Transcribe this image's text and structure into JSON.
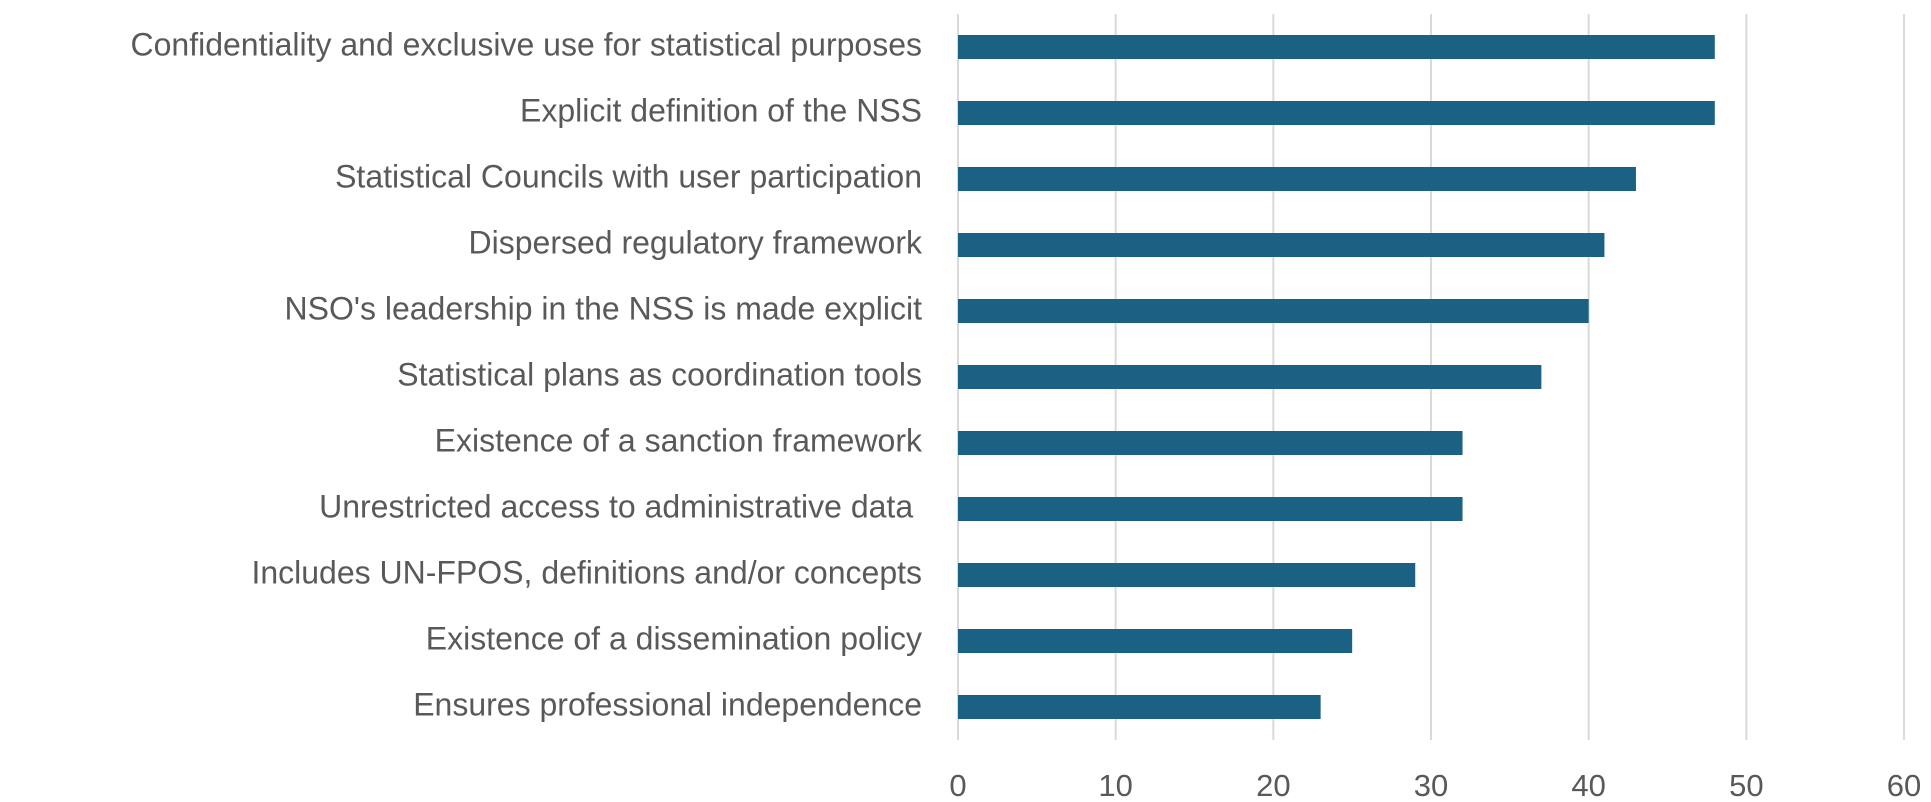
{
  "chart_data": {
    "type": "bar",
    "orientation": "horizontal",
    "categories": [
      "Confidentiality and exclusive use for statistical purposes",
      "Explicit definition of the NSS",
      "Statistical Councils with user participation",
      "Dispersed regulatory framework",
      "NSO's leadership in the NSS is made explicit",
      "Statistical plans as coordination tools",
      "Existence of a sanction framework",
      "Unrestricted access to administrative data ",
      "Includes UN-FPOS, definitions and/or concepts",
      "Existence of a dissemination policy",
      "Ensures professional independence"
    ],
    "values": [
      48,
      48,
      43,
      41,
      40,
      37,
      32,
      32,
      29,
      25,
      23
    ],
    "color": "#1a6183",
    "xlim": [
      0,
      60
    ],
    "xticks": [
      0,
      10,
      20,
      30,
      40,
      50,
      60
    ],
    "grid": true
  }
}
